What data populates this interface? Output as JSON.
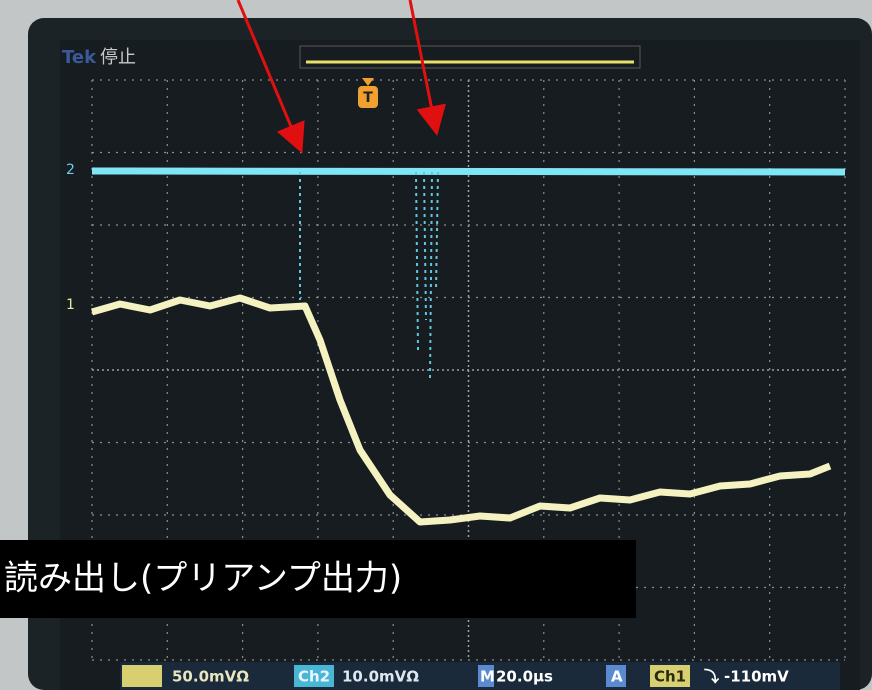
{
  "header": {
    "brand": "Tek",
    "status": "停止",
    "trigger_marker": "T"
  },
  "channel_markers": {
    "ch2": "2",
    "ch1": "1"
  },
  "caption": "読み出し(プリアンプ出力)",
  "status_bar": {
    "ch1_scale": "50.0mVΩ",
    "ch2_label": "Ch2",
    "ch2_scale": "10.0mVΩ",
    "time_label": "M",
    "time_scale": "20.0μs",
    "trigger_label": "A",
    "trigger_source": "Ch1",
    "trigger_slope": "⤵",
    "trigger_level": "-110mV"
  }
}
